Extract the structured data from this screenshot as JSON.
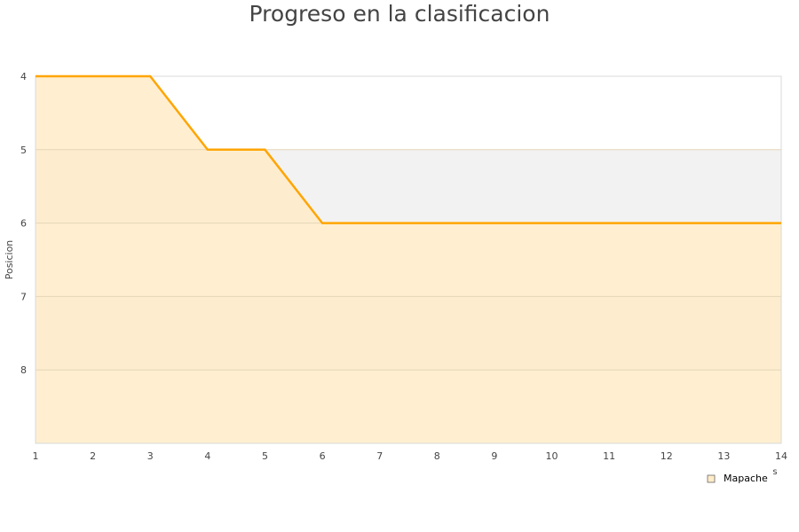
{
  "chart_data": {
    "type": "area",
    "title": "Progreso en la clasificacion",
    "xlabel": "s",
    "ylabel": "Posicion",
    "x": [
      1,
      2,
      3,
      4,
      5,
      6,
      7,
      8,
      9,
      10,
      11,
      12,
      13,
      14
    ],
    "xlim": [
      1,
      14
    ],
    "ylim": [
      4,
      9
    ],
    "y_inverted": true,
    "yticks": [
      4,
      5,
      6,
      7,
      8
    ],
    "grid": true,
    "legend_position": "bottom-right",
    "series": [
      {
        "name": "Mapache",
        "values": [
          4,
          4,
          4,
          5,
          5,
          6,
          6,
          6,
          6,
          6,
          6,
          6,
          6,
          6
        ],
        "color": "#ffa500",
        "fill": "#ffecc8"
      }
    ]
  }
}
